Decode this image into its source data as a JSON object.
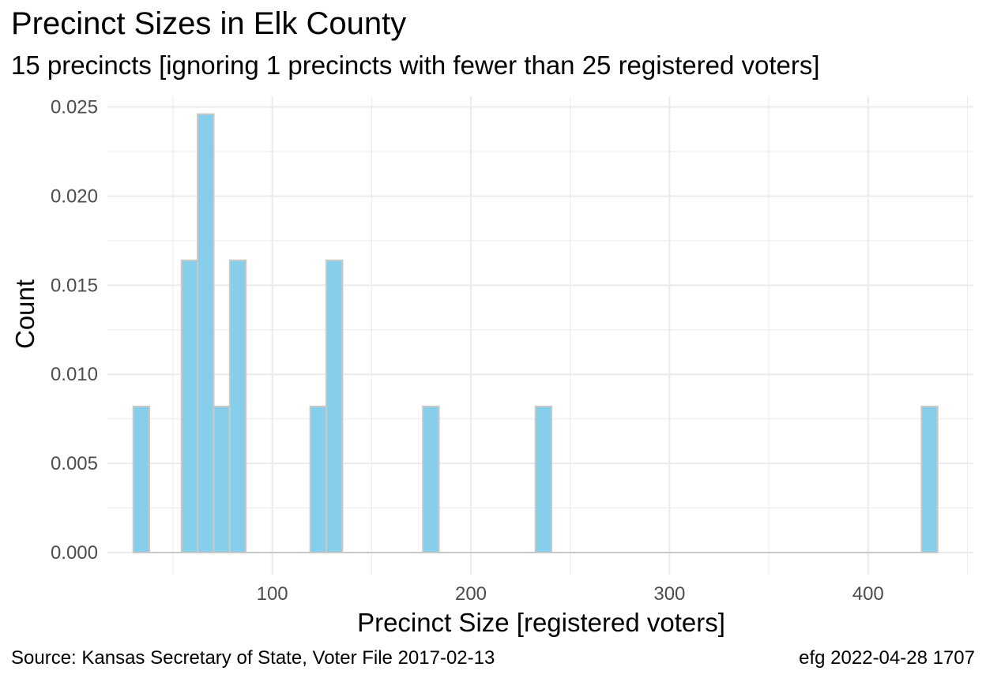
{
  "chart_data": {
    "type": "bar",
    "title": "Precinct Sizes in Elk County",
    "subtitle": "15 precincts [ignoring 1 precincts with fewer than 25 registered voters]",
    "xlabel": "Precinct Size [registered voters]",
    "ylabel": "Count",
    "caption_left": "Source:  Kansas Secretary of State, Voter File  2017-02-13",
    "caption_right": "efg 2022-04-28 1707",
    "xlim": [
      17,
      453
    ],
    "ylim": [
      -0.00124,
      0.0256
    ],
    "x_ticks": [
      {
        "value": 100,
        "label": "100"
      },
      {
        "value": 200,
        "label": "200"
      },
      {
        "value": 300,
        "label": "300"
      },
      {
        "value": 400,
        "label": "400"
      }
    ],
    "y_ticks": [
      {
        "value": 0.0,
        "label": "0.000"
      },
      {
        "value": 0.005,
        "label": "0.005"
      },
      {
        "value": 0.01,
        "label": "0.010"
      },
      {
        "value": 0.015,
        "label": "0.015"
      },
      {
        "value": 0.02,
        "label": "0.020"
      },
      {
        "value": 0.025,
        "label": "0.025"
      }
    ],
    "grid": true,
    "bin_width": 8.1,
    "baseline": {
      "from": 30,
      "to": 434
    },
    "bars": [
      {
        "x0": 30.0,
        "x1": 38.1,
        "value": 0.0082
      },
      {
        "x0": 54.3,
        "x1": 62.4,
        "value": 0.0164
      },
      {
        "x0": 62.4,
        "x1": 70.5,
        "value": 0.0246
      },
      {
        "x0": 70.5,
        "x1": 78.6,
        "value": 0.0082
      },
      {
        "x0": 78.6,
        "x1": 86.7,
        "value": 0.0164
      },
      {
        "x0": 119.1,
        "x1": 127.2,
        "value": 0.0082
      },
      {
        "x0": 127.2,
        "x1": 135.3,
        "value": 0.0164
      },
      {
        "x0": 175.8,
        "x1": 183.9,
        "value": 0.0082
      },
      {
        "x0": 232.5,
        "x1": 240.6,
        "value": 0.0082
      },
      {
        "x0": 426.9,
        "x1": 435.0,
        "value": 0.0082
      }
    ],
    "colors": {
      "fill": "#87ceeb",
      "stroke": "#c8c8c8",
      "grid": "#ebebeb",
      "tick_text": "#4d4d4d",
      "baseline": "#c8c8c8"
    }
  }
}
